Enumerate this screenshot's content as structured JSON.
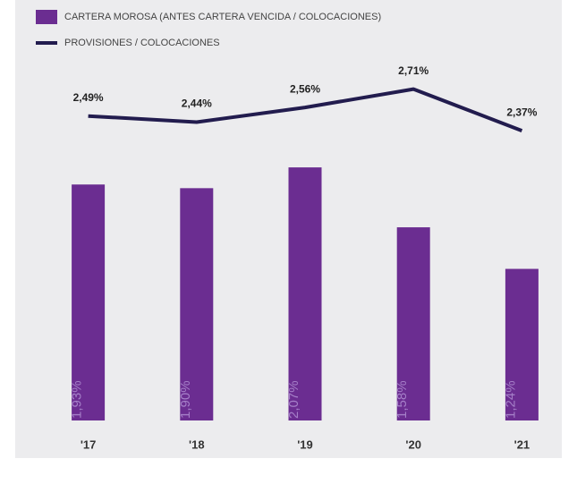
{
  "chart_data": {
    "type": "bar_line",
    "categories": [
      "'17",
      "'18",
      "'19",
      "'20",
      "'21"
    ],
    "series": [
      {
        "name": "CARTERA MOROSA (ANTES CARTERA VENCIDA / COLOCACIONES)",
        "type": "bar",
        "color": "#6b2d91",
        "values": [
          1.93,
          1.9,
          2.07,
          1.58,
          1.24
        ],
        "value_labels": [
          "1,93%",
          "1,90%",
          "2,07%",
          "1,58%",
          "1,24%"
        ]
      },
      {
        "name": "PROVISIONES / COLOCACIONES",
        "type": "line",
        "color": "#221c4e",
        "values": [
          2.49,
          2.44,
          2.56,
          2.71,
          2.37
        ],
        "value_labels": [
          "2,49%",
          "2,44%",
          "2,56%",
          "2,71%",
          "2,37%"
        ]
      }
    ],
    "ylim": [
      0,
      3
    ]
  }
}
